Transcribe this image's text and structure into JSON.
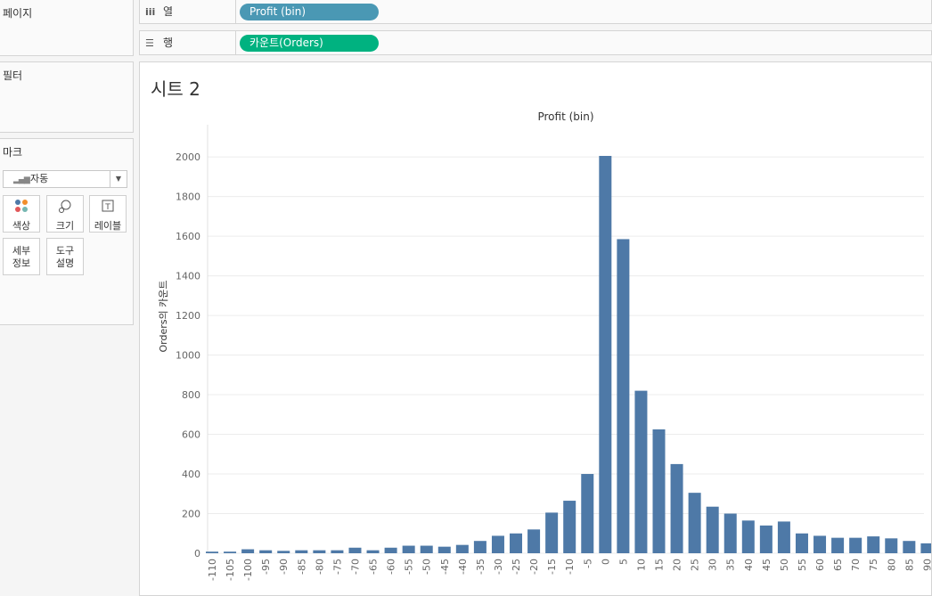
{
  "panels": {
    "pages": "페이지",
    "filters": "필터",
    "marks": "마크"
  },
  "shelves": {
    "columns": {
      "icon": "iii",
      "label": "열",
      "pill": "Profit (bin)"
    },
    "rows": {
      "icon": "☰",
      "label": "행",
      "pill": "카운트(Orders)"
    }
  },
  "marks": {
    "type": "자동",
    "cards": {
      "color": "색상",
      "size": "크기",
      "label": "레이블",
      "detail_1": "세부",
      "detail_2": "정보",
      "tooltip_1": "도구",
      "tooltip_2": "설명"
    }
  },
  "colors": {
    "bar": "#4e79a7",
    "pill_columns": "#4a98b4",
    "pill_rows": "#00b280"
  },
  "sheet": {
    "title": "시트 2"
  },
  "chart_data": {
    "type": "bar",
    "title": "Profit (bin)",
    "ylabel": "Orders의 카운트",
    "ylim": [
      0,
      2050
    ],
    "yticks": [
      0,
      200,
      400,
      600,
      800,
      1000,
      1200,
      1400,
      1600,
      1800,
      2000
    ],
    "categories": [
      "-110",
      "-105",
      "-100",
      "-95",
      "-90",
      "-85",
      "-80",
      "-75",
      "-70",
      "-65",
      "-60",
      "-55",
      "-50",
      "-45",
      "-40",
      "-35",
      "-30",
      "-25",
      "-20",
      "-15",
      "-10",
      "-5",
      "0",
      "5",
      "10",
      "15",
      "20",
      "25",
      "30",
      "35",
      "40",
      "45",
      "50",
      "55",
      "60",
      "65",
      "70",
      "75",
      "80",
      "85",
      "90"
    ],
    "values": [
      8,
      8,
      20,
      15,
      12,
      15,
      15,
      15,
      28,
      15,
      28,
      38,
      38,
      33,
      42,
      62,
      88,
      100,
      120,
      205,
      265,
      400,
      2005,
      1585,
      820,
      625,
      450,
      305,
      235,
      200,
      165,
      140,
      160,
      100,
      88,
      78,
      78,
      85,
      75,
      62,
      50
    ],
    "grid": "horizontal"
  }
}
